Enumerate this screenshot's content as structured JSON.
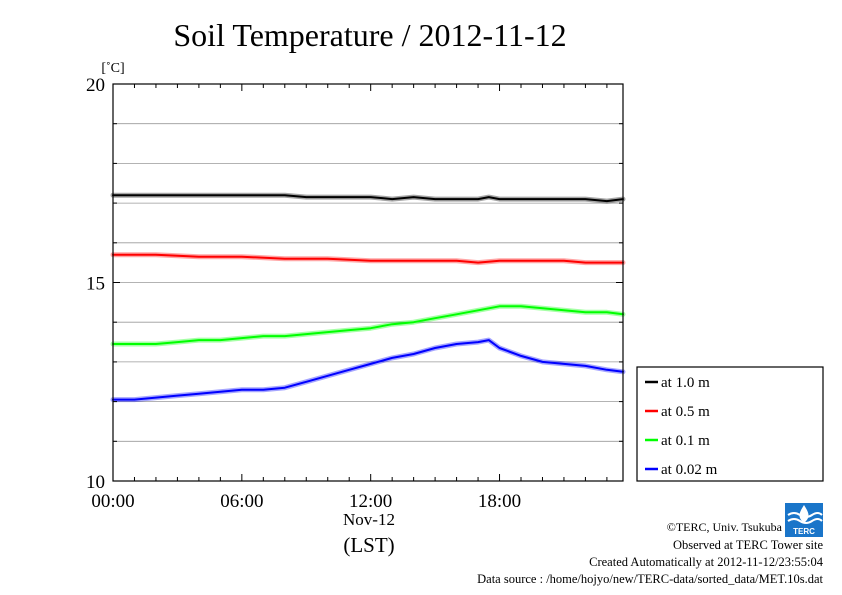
{
  "chart_data": {
    "type": "line",
    "title": "Soil Temperature / 2012-11-12",
    "y_unit": "[˚C]",
    "ylim": [
      10,
      20
    ],
    "yticks": [
      10,
      15,
      20
    ],
    "y_minor_step": 1,
    "xlim": [
      0,
      23.75
    ],
    "xticks": [
      {
        "hour": 0,
        "label": "00:00"
      },
      {
        "hour": 6,
        "label": "06:00"
      },
      {
        "hour": 12,
        "label": "12:00"
      },
      {
        "hour": 18,
        "label": "18:00"
      }
    ],
    "x_date_label": "Nov-12",
    "x_axis_label": "(LST)",
    "grid": "horizontal",
    "legend_position": "bottom-right",
    "series": [
      {
        "name": "at 1.0 m",
        "color": "#000000",
        "x": [
          0,
          2,
          4,
          6,
          8,
          9,
          10,
          11,
          12,
          13,
          14,
          15,
          16,
          17,
          17.5,
          18,
          19,
          20,
          21,
          22,
          23,
          23.75
        ],
        "values": [
          17.2,
          17.2,
          17.2,
          17.2,
          17.2,
          17.15,
          17.15,
          17.15,
          17.15,
          17.1,
          17.15,
          17.1,
          17.1,
          17.1,
          17.15,
          17.1,
          17.1,
          17.1,
          17.1,
          17.1,
          17.05,
          17.1
        ]
      },
      {
        "name": "at 0.5 m",
        "color": "#ff0000",
        "x": [
          0,
          2,
          4,
          6,
          8,
          10,
          12,
          14,
          16,
          17,
          18,
          20,
          21,
          22,
          23,
          23.75
        ],
        "values": [
          15.7,
          15.7,
          15.65,
          15.65,
          15.6,
          15.6,
          15.55,
          15.55,
          15.55,
          15.5,
          15.55,
          15.55,
          15.55,
          15.5,
          15.5,
          15.5
        ]
      },
      {
        "name": "at 0.1 m",
        "color": "#00ff00",
        "x": [
          0,
          1,
          2,
          3,
          4,
          5,
          6,
          7,
          8,
          9,
          10,
          11,
          12,
          13,
          14,
          15,
          16,
          17,
          18,
          19,
          20,
          21,
          22,
          23,
          23.75
        ],
        "values": [
          13.45,
          13.45,
          13.45,
          13.5,
          13.55,
          13.55,
          13.6,
          13.65,
          13.65,
          13.7,
          13.75,
          13.8,
          13.85,
          13.95,
          14.0,
          14.1,
          14.2,
          14.3,
          14.4,
          14.4,
          14.35,
          14.3,
          14.25,
          14.25,
          14.2
        ]
      },
      {
        "name": "at 0.02 m",
        "color": "#0000ff",
        "x": [
          0,
          1,
          2,
          3,
          4,
          5,
          6,
          7,
          8,
          9,
          10,
          11,
          12,
          13,
          14,
          15,
          16,
          17,
          17.5,
          18,
          19,
          20,
          21,
          22,
          23,
          23.75
        ],
        "values": [
          12.05,
          12.05,
          12.1,
          12.15,
          12.2,
          12.25,
          12.3,
          12.3,
          12.35,
          12.5,
          12.65,
          12.8,
          12.95,
          13.1,
          13.2,
          13.35,
          13.45,
          13.5,
          13.55,
          13.35,
          13.15,
          13.0,
          12.95,
          12.9,
          12.8,
          12.75
        ]
      }
    ]
  },
  "footer": {
    "copyright": "©TERC, Univ. Tsukuba",
    "observed": "Observed at TERC Tower site",
    "created": "Created Automatically at 2012-11-12/23:55:04",
    "source": "Data source : /home/hojyo/new/TERC-data/sorted_data/MET.10s.dat"
  },
  "logo": {
    "text": "TERC",
    "color": "#1a75c9"
  }
}
